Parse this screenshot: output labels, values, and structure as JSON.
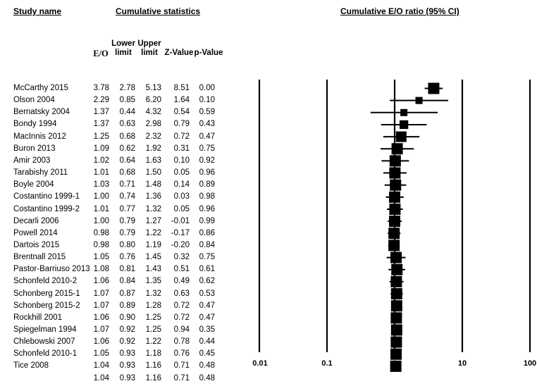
{
  "headers": {
    "study": "Study name",
    "stats": "Cumulative statistics",
    "plot": "Cumulative E/O ratio (95% CI)"
  },
  "columns": {
    "eo": "E/O",
    "lower_1": "Lower",
    "lower_2": "limit",
    "upper_1": "Upper",
    "upper_2": "limit",
    "z": "Z-Value",
    "p": "p-Value"
  },
  "rows": [
    {
      "name": "McCarthy 2015",
      "eo": "3.78",
      "lower": "2.78",
      "upper": "5.13",
      "z": "8.51",
      "p": "0.00"
    },
    {
      "name": "Olson 2004",
      "eo": "2.29",
      "lower": "0.85",
      "upper": "6.20",
      "z": "1.64",
      "p": "0.10"
    },
    {
      "name": "Bernatsky 2004",
      "eo": "1.37",
      "lower": "0.44",
      "upper": "4.32",
      "z": "0.54",
      "p": "0.59"
    },
    {
      "name": "Bondy 1994",
      "eo": "1.37",
      "lower": "0.63",
      "upper": "2.98",
      "z": "0.79",
      "p": "0.43"
    },
    {
      "name": "MacInnis 2012",
      "eo": "1.25",
      "lower": "0.68",
      "upper": "2.32",
      "z": "0.72",
      "p": "0.47"
    },
    {
      "name": "Buron 2013",
      "eo": "1.09",
      "lower": "0.62",
      "upper": "1.92",
      "z": "0.31",
      "p": "0.75"
    },
    {
      "name": "Amir 2003",
      "eo": "1.02",
      "lower": "0.64",
      "upper": "1.63",
      "z": "0.10",
      "p": "0.92"
    },
    {
      "name": "Tarabishy 2011",
      "eo": "1.01",
      "lower": "0.68",
      "upper": "1.50",
      "z": "0.05",
      "p": "0.96"
    },
    {
      "name": "Boyle 2004",
      "eo": "1.03",
      "lower": "0.71",
      "upper": "1.48",
      "z": "0.14",
      "p": "0.89"
    },
    {
      "name": "Costantino 1999-1",
      "eo": "1.00",
      "lower": "0.74",
      "upper": "1.36",
      "z": "0.03",
      "p": "0.98"
    },
    {
      "name": "Costantino 1999-2",
      "eo": "1.01",
      "lower": "0.77",
      "upper": "1.32",
      "z": "0.05",
      "p": "0.96"
    },
    {
      "name": "Decarli 2006",
      "eo": "1.00",
      "lower": "0.79",
      "upper": "1.27",
      "z": "-0.01",
      "p": "0.99"
    },
    {
      "name": "Powell 2014",
      "eo": "0.98",
      "lower": "0.79",
      "upper": "1.22",
      "z": "-0.17",
      "p": "0.86"
    },
    {
      "name": "Dartois 2015",
      "eo": "0.98",
      "lower": "0.80",
      "upper": "1.19",
      "z": "-0.20",
      "p": "0.84"
    },
    {
      "name": "Brentnall 2015",
      "eo": "1.05",
      "lower": "0.76",
      "upper": "1.45",
      "z": "0.32",
      "p": "0.75"
    },
    {
      "name": "Pastor-Barriuso 2013",
      "eo": "1.08",
      "lower": "0.81",
      "upper": "1.43",
      "z": "0.51",
      "p": "0.61"
    },
    {
      "name": "Schonfeld 2010-2",
      "eo": "1.06",
      "lower": "0.84",
      "upper": "1.35",
      "z": "0.49",
      "p": "0.62"
    },
    {
      "name": "Schonberg 2015-1",
      "eo": "1.07",
      "lower": "0.87",
      "upper": "1.32",
      "z": "0.63",
      "p": "0.53"
    },
    {
      "name": "Schonberg 2015-2",
      "eo": "1.07",
      "lower": "0.89",
      "upper": "1.28",
      "z": "0.72",
      "p": "0.47"
    },
    {
      "name": "Rockhill 2001",
      "eo": "1.06",
      "lower": "0.90",
      "upper": "1.25",
      "z": "0.72",
      "p": "0.47"
    },
    {
      "name": "Spiegelman 1994",
      "eo": "1.07",
      "lower": "0.92",
      "upper": "1.25",
      "z": "0.94",
      "p": "0.35"
    },
    {
      "name": "Chlebowski 2007",
      "eo": "1.06",
      "lower": "0.92",
      "upper": "1.22",
      "z": "0.78",
      "p": "0.44"
    },
    {
      "name": "Schonfeld 2010-1",
      "eo": "1.05",
      "lower": "0.93",
      "upper": "1.18",
      "z": "0.76",
      "p": "0.45"
    },
    {
      "name": "Tice 2008",
      "eo": "1.04",
      "lower": "0.93",
      "upper": "1.16",
      "z": "0.71",
      "p": "0.48"
    },
    {
      "name": "",
      "eo": "1.04",
      "lower": "0.93",
      "upper": "1.16",
      "z": "0.71",
      "p": "0.48"
    }
  ],
  "chart_data": {
    "type": "forest",
    "title": "Cumulative E/O ratio (95% CI)",
    "x_scale": "log",
    "xlim": [
      0.01,
      100
    ],
    "x_ticks": [
      "0.01",
      "0.1",
      "1",
      "10",
      "100"
    ],
    "reference_lines": [
      0.01,
      0.1,
      1,
      10,
      100
    ],
    "marker_color": "#000000",
    "series": [
      {
        "estimate": 3.78,
        "lower": 2.78,
        "upper": 5.13
      },
      {
        "estimate": 2.29,
        "lower": 0.85,
        "upper": 6.2
      },
      {
        "estimate": 1.37,
        "lower": 0.44,
        "upper": 4.32
      },
      {
        "estimate": 1.37,
        "lower": 0.63,
        "upper": 2.98
      },
      {
        "estimate": 1.25,
        "lower": 0.68,
        "upper": 2.32
      },
      {
        "estimate": 1.09,
        "lower": 0.62,
        "upper": 1.92
      },
      {
        "estimate": 1.02,
        "lower": 0.64,
        "upper": 1.63
      },
      {
        "estimate": 1.01,
        "lower": 0.68,
        "upper": 1.5
      },
      {
        "estimate": 1.03,
        "lower": 0.71,
        "upper": 1.48
      },
      {
        "estimate": 1.0,
        "lower": 0.74,
        "upper": 1.36
      },
      {
        "estimate": 1.01,
        "lower": 0.77,
        "upper": 1.32
      },
      {
        "estimate": 1.0,
        "lower": 0.79,
        "upper": 1.27
      },
      {
        "estimate": 0.98,
        "lower": 0.79,
        "upper": 1.22
      },
      {
        "estimate": 0.98,
        "lower": 0.8,
        "upper": 1.19
      },
      {
        "estimate": 1.05,
        "lower": 0.76,
        "upper": 1.45
      },
      {
        "estimate": 1.08,
        "lower": 0.81,
        "upper": 1.43
      },
      {
        "estimate": 1.06,
        "lower": 0.84,
        "upper": 1.35
      },
      {
        "estimate": 1.07,
        "lower": 0.87,
        "upper": 1.32
      },
      {
        "estimate": 1.07,
        "lower": 0.89,
        "upper": 1.28
      },
      {
        "estimate": 1.06,
        "lower": 0.9,
        "upper": 1.25
      },
      {
        "estimate": 1.07,
        "lower": 0.92,
        "upper": 1.25
      },
      {
        "estimate": 1.06,
        "lower": 0.92,
        "upper": 1.22
      },
      {
        "estimate": 1.05,
        "lower": 0.93,
        "upper": 1.18
      },
      {
        "estimate": 1.04,
        "lower": 0.93,
        "upper": 1.16
      }
    ],
    "summary": {
      "estimate": 1.04,
      "lower": 0.93,
      "upper": 1.16,
      "marker": "diamond"
    }
  }
}
